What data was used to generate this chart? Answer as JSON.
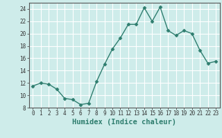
{
  "x": [
    0,
    1,
    2,
    3,
    4,
    5,
    6,
    7,
    8,
    9,
    10,
    11,
    12,
    13,
    14,
    15,
    16,
    17,
    18,
    19,
    20,
    21,
    22,
    23
  ],
  "y": [
    11.5,
    12.0,
    11.8,
    11.0,
    9.5,
    9.3,
    8.5,
    8.7,
    12.2,
    15.0,
    17.5,
    19.3,
    21.5,
    21.5,
    24.2,
    22.0,
    24.3,
    20.5,
    19.7,
    20.5,
    20.0,
    17.3,
    15.2,
    15.5
  ],
  "line_color": "#2e7d6e",
  "marker": "D",
  "marker_size": 2.5,
  "background_color": "#ceecea",
  "grid_color": "#ffffff",
  "xlabel": "Humidex (Indice chaleur)",
  "ylim": [
    8,
    25
  ],
  "xlim": [
    -0.5,
    23.5
  ],
  "yticks": [
    8,
    10,
    12,
    14,
    16,
    18,
    20,
    22,
    24
  ],
  "xticks": [
    0,
    1,
    2,
    3,
    4,
    5,
    6,
    7,
    8,
    9,
    10,
    11,
    12,
    13,
    14,
    15,
    16,
    17,
    18,
    19,
    20,
    21,
    22,
    23
  ],
  "tick_labelsize": 5.5,
  "xlabel_fontsize": 7.5,
  "spine_color": "#555555",
  "tick_color": "#333333",
  "linewidth": 1.0
}
